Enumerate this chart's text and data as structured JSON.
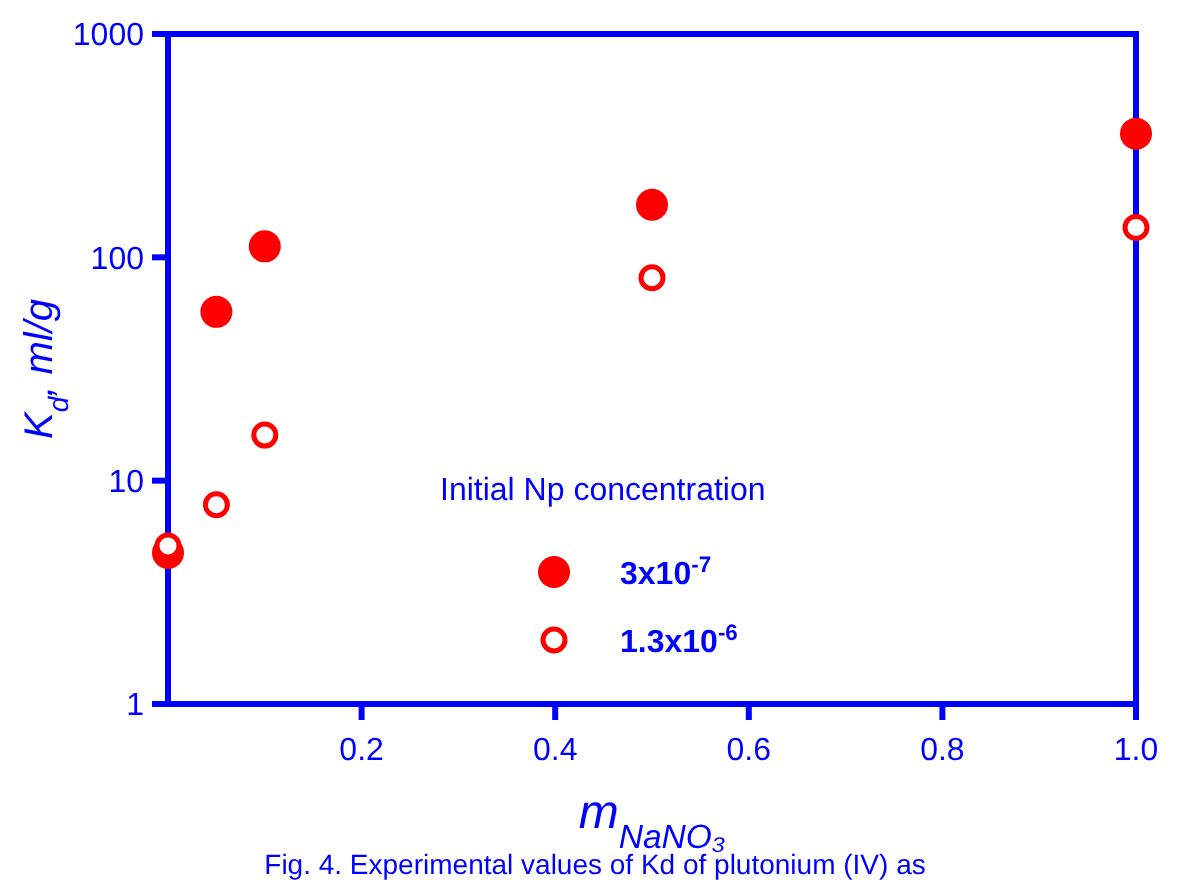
{
  "chart_data": {
    "type": "scatter",
    "xlabel": "m$_{NaNO₃}$",
    "ylabel": "K$_{d}$, ml/g",
    "legend_title": "Initial Np concentration",
    "x": [
      0,
      0.05,
      0.1,
      0.5,
      1.0
    ],
    "series": [
      {
        "name": "3x10$^{-7}$",
        "color": "#ff0000",
        "marker": "circle",
        "values": [
          4.75,
          57,
          112,
          172,
          358
        ]
      },
      {
        "name": "1.3x10$^{-6}$",
        "color": "#ff0000",
        "marker": "open_circle",
        "values": [
          5.1,
          7.8,
          16,
          81,
          136
        ]
      }
    ],
    "xlim": [
      0,
      1
    ],
    "xticks": [
      0.2,
      0.4,
      0.6,
      0.8,
      {
        "value": 1,
        "label": "1.0"
      }
    ],
    "ylim": [
      1,
      1000
    ],
    "yticks": [
      1,
      10,
      100,
      1000
    ],
    "log": "y",
    "grid": false,
    "legend": "bottom",
    "annotations": [
      "Fig. 4. Experimental values of Kd of plutonium (IV) as"
    ]
  }
}
